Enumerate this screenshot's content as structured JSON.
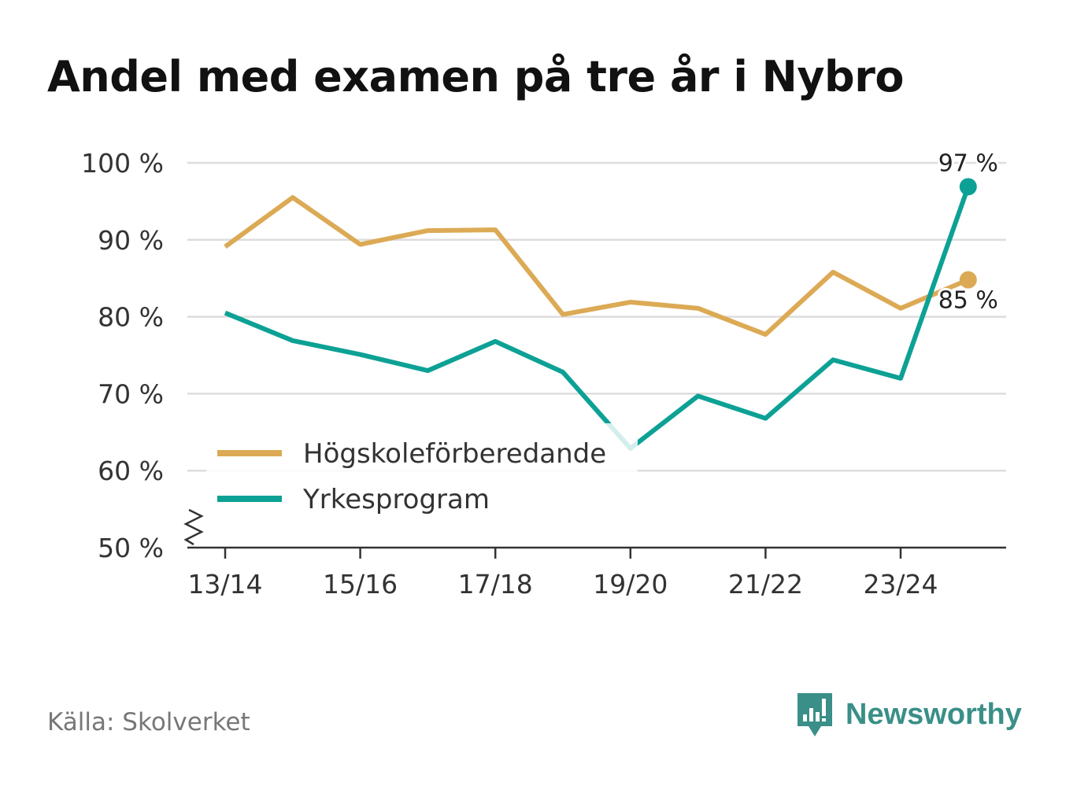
{
  "title": "Andel med examen på tre år i Nybro",
  "source": "Källa: Skolverket",
  "brand": {
    "name": "Newsworthy",
    "icon": "newsworthy-logo-icon",
    "color": "#3a8f88"
  },
  "chart_data": {
    "type": "line",
    "title": "Andel med examen på tre år i Nybro",
    "xlabel": "",
    "ylabel": "",
    "ylim": [
      50,
      100
    ],
    "yticks": [
      50,
      60,
      70,
      80,
      90,
      100
    ],
    "ytick_labels": [
      "50 %",
      "60 %",
      "70 %",
      "80 %",
      "90 %",
      "100 %"
    ],
    "y_axis_break": true,
    "grid": true,
    "categories": [
      "13/14",
      "14/15",
      "15/16",
      "16/17",
      "17/18",
      "18/19",
      "19/20",
      "20/21",
      "21/22",
      "22/23",
      "23/24",
      "24/25"
    ],
    "xtick_labels": [
      "13/14",
      "15/16",
      "17/18",
      "19/20",
      "21/22",
      "23/24"
    ],
    "legend_position": "bottom-left",
    "series": [
      {
        "name": "Högskoleförberedande",
        "color": "#dcaa55",
        "values": [
          89.1,
          95.5,
          89.4,
          91.2,
          91.3,
          80.3,
          81.9,
          81.1,
          77.7,
          85.8,
          81.1,
          84.8
        ],
        "end_label": "85 %"
      },
      {
        "name": "Yrkesprogram",
        "color": "#0da195",
        "values": [
          80.5,
          76.9,
          75.1,
          73.0,
          76.8,
          72.8,
          62.9,
          69.7,
          66.8,
          74.4,
          72.0,
          96.9
        ],
        "end_label": "97 %"
      }
    ]
  }
}
